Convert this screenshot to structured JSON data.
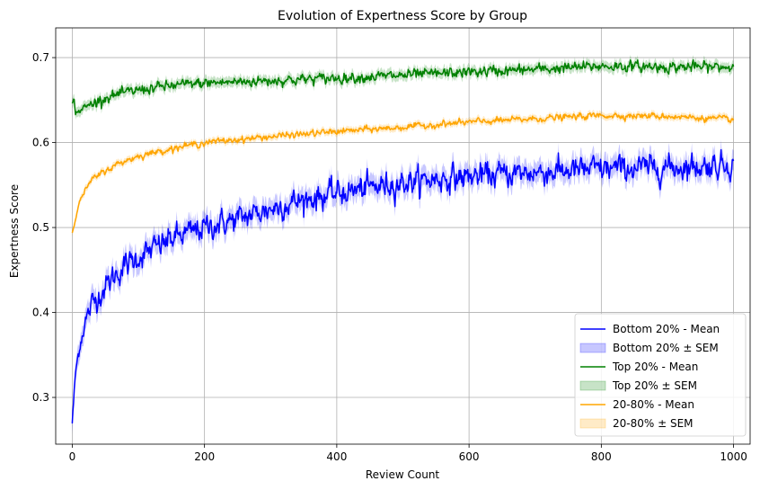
{
  "chart_data": {
    "type": "line",
    "title": "Evolution of Expertness Score by Group",
    "xlabel": "Review Count",
    "ylabel": "Expertness Score",
    "xlim": [
      -25,
      1025
    ],
    "ylim": [
      0.245,
      0.735
    ],
    "xticks": [
      0,
      200,
      400,
      600,
      800,
      1000
    ],
    "xtick_labels": [
      "0",
      "200",
      "400",
      "600",
      "800",
      "1000"
    ],
    "yticks": [
      0.3,
      0.4,
      0.5,
      0.6,
      0.7
    ],
    "ytick_labels": [
      "0.3",
      "0.4",
      "0.5",
      "0.6",
      "0.7"
    ],
    "grid": true,
    "legend_position": "bottom-right",
    "legend": [
      "Bottom 20% - Mean",
      "Bottom 20% ± SEM",
      "Top 20% - Mean",
      "Top 20% ± SEM",
      "20-80% - Mean",
      "20-80% ± SEM"
    ],
    "series": [
      {
        "name": "Bottom 20%",
        "color": "#0000ff",
        "x": [
          0,
          5,
          10,
          20,
          30,
          40,
          60,
          80,
          100,
          150,
          200,
          250,
          300,
          350,
          400,
          450,
          500,
          550,
          600,
          650,
          700,
          750,
          800,
          850,
          900,
          950,
          1000
        ],
        "y": [
          0.27,
          0.33,
          0.355,
          0.39,
          0.41,
          0.42,
          0.44,
          0.455,
          0.465,
          0.487,
          0.5,
          0.51,
          0.522,
          0.533,
          0.54,
          0.547,
          0.553,
          0.557,
          0.56,
          0.563,
          0.565,
          0.567,
          0.569,
          0.57,
          0.571,
          0.572,
          0.575
        ],
        "sem": 0.012,
        "noise": 0.012
      },
      {
        "name": "Top 20%",
        "color": "#008000",
        "x": [
          0,
          3,
          5,
          10,
          20,
          50,
          100,
          150,
          200,
          300,
          400,
          500,
          600,
          700,
          800,
          900,
          1000
        ],
        "y": [
          0.645,
          0.652,
          0.634,
          0.637,
          0.642,
          0.653,
          0.662,
          0.667,
          0.67,
          0.673,
          0.676,
          0.679,
          0.683,
          0.686,
          0.69,
          0.689,
          0.689
        ],
        "sem": 0.006,
        "noise": 0.005
      },
      {
        "name": "20-80%",
        "color": "#ffa500",
        "x": [
          0,
          5,
          10,
          20,
          30,
          50,
          75,
          100,
          150,
          200,
          300,
          400,
          500,
          600,
          700,
          800,
          900,
          1000
        ],
        "y": [
          0.494,
          0.51,
          0.528,
          0.545,
          0.556,
          0.567,
          0.577,
          0.584,
          0.593,
          0.6,
          0.607,
          0.613,
          0.618,
          0.624,
          0.628,
          0.632,
          0.631,
          0.627
        ],
        "sem": 0.004,
        "noise": 0.003
      }
    ]
  }
}
